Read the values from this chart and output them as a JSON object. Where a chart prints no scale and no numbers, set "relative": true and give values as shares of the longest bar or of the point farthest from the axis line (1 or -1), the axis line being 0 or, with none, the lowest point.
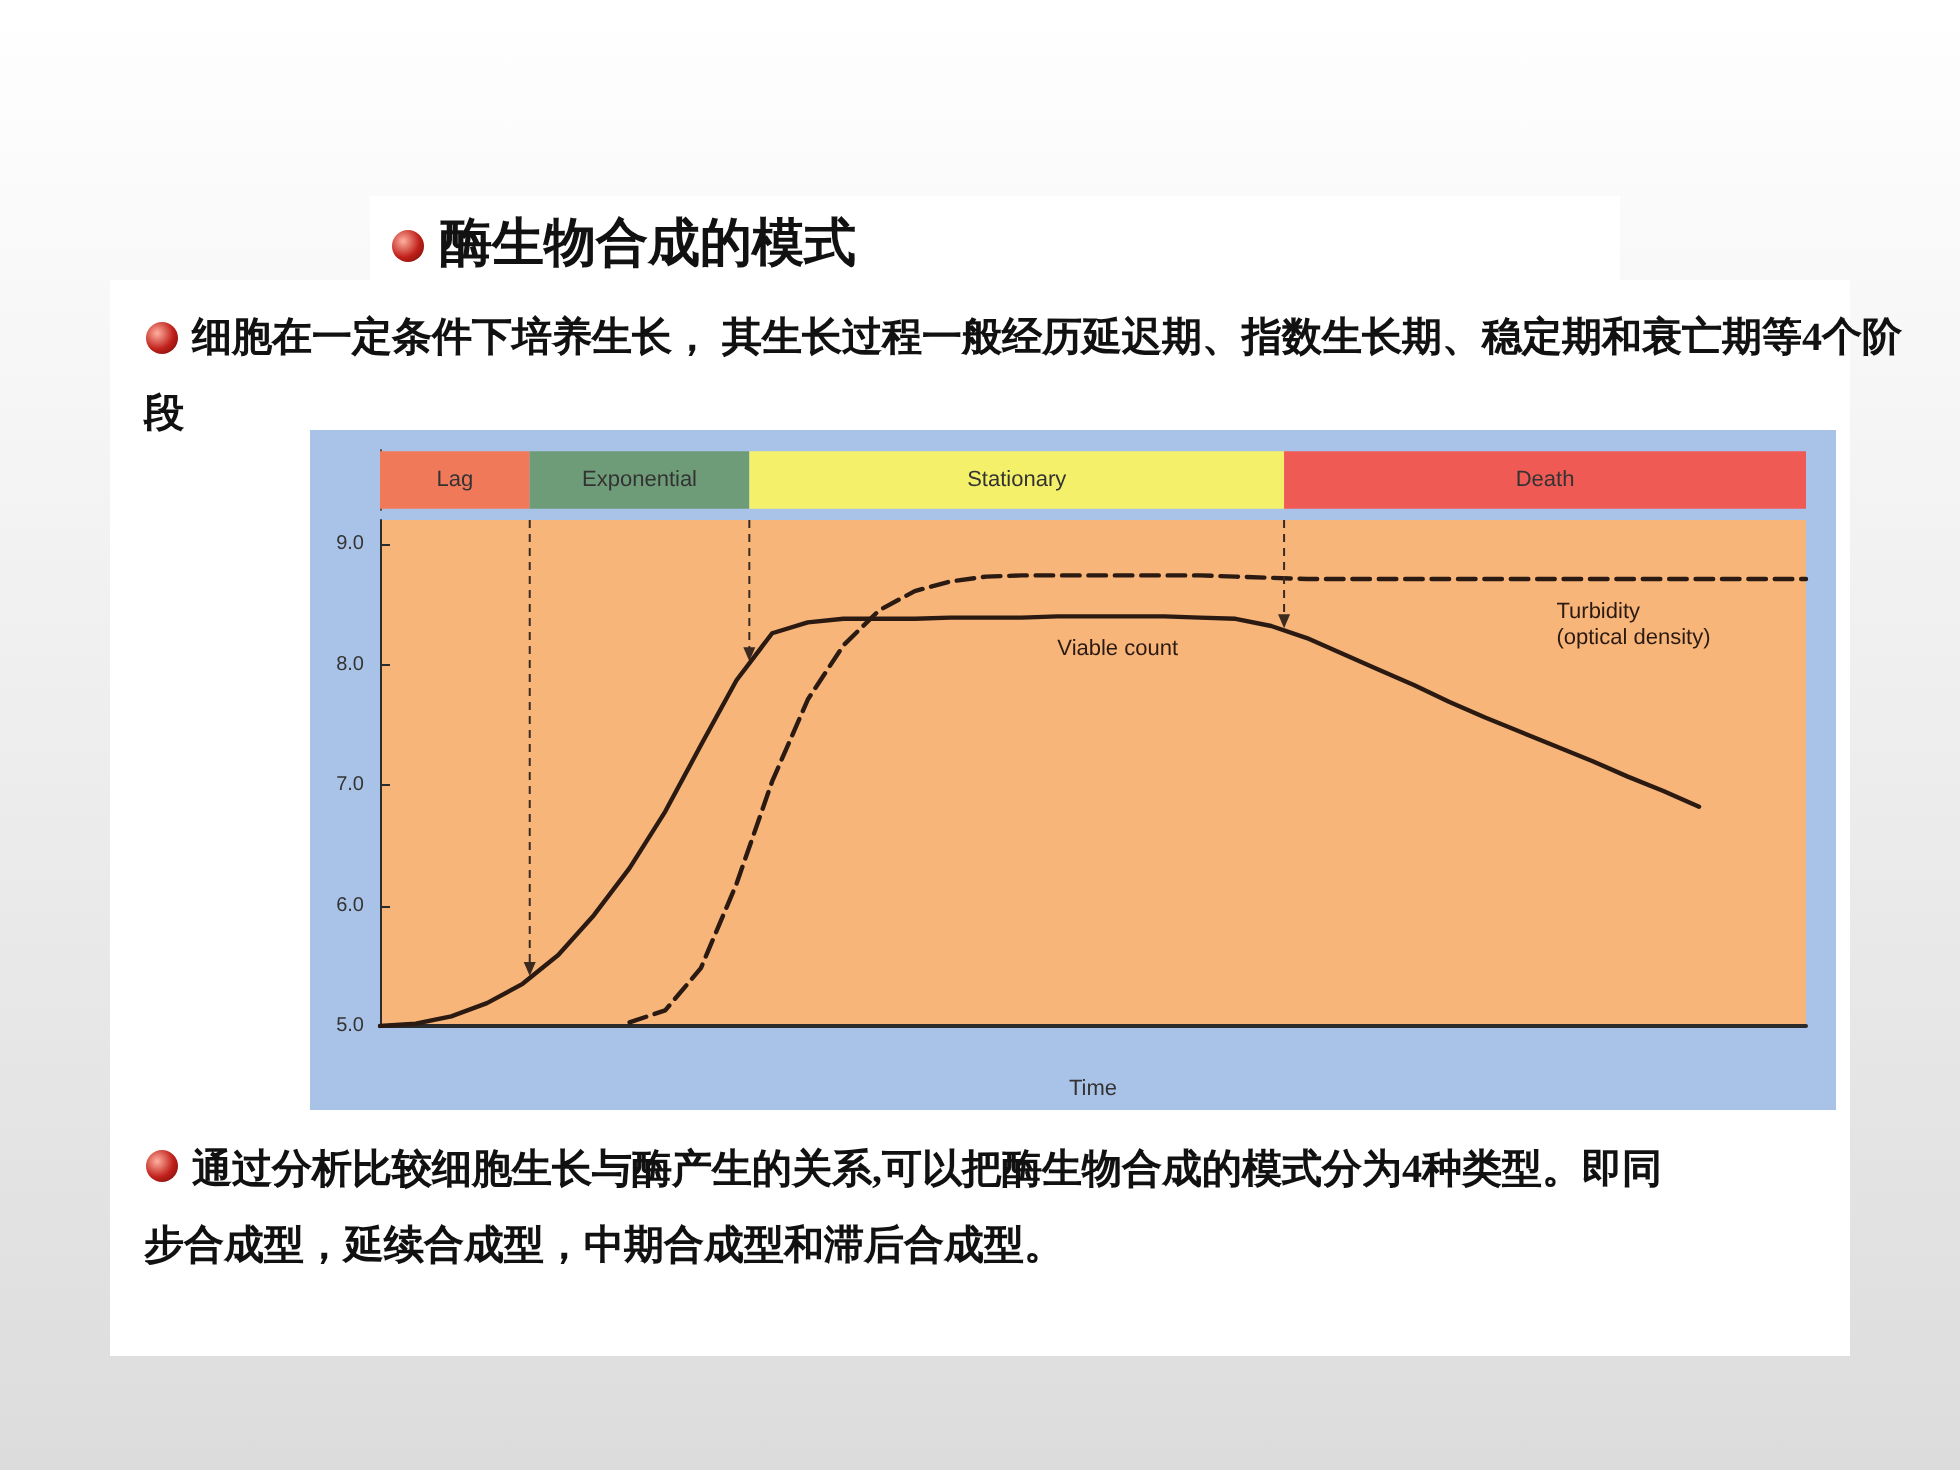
{
  "chart_data": [
    {
      "type": "bar",
      "orientation": "horizontal",
      "stacked": true,
      "relative": true,
      "legend": false,
      "title": "酶生物合成的模式",
      "subtitle": "细胞在一定条件下培养生长， 其生长过程一般经历延迟期、指数生长期、稳定期和衰亡期等4个阶段",
      "categories": [
        null
      ],
      "series": [
        {
          "name": "Lag",
          "color": "#f0795a",
          "values": [
            0.105
          ]
        },
        {
          "name": "Exponential",
          "color": "#6f9c78",
          "values": [
            0.154
          ]
        },
        {
          "name": "Stationary",
          "color": "#f4f06a",
          "values": [
            0.375
          ]
        },
        {
          "name": "Death",
          "color": "#ef5a55",
          "values": [
            0.366
          ]
        }
      ]
    },
    {
      "type": "line",
      "xlabel": "Time",
      "categories": [
        null,
        null,
        null,
        null,
        null,
        null,
        null,
        null,
        null,
        null,
        null,
        null,
        null,
        null,
        null,
        null,
        null,
        null,
        null,
        null,
        null,
        null,
        null,
        null,
        null,
        null,
        null,
        null,
        null,
        null,
        null,
        null,
        null,
        null,
        null,
        null,
        null,
        null,
        null,
        null,
        null
      ],
      "ylim": [
        5,
        9.2
      ],
      "yticks": [
        {
          "value": 5,
          "label": "5.0"
        },
        {
          "value": 6,
          "label": "6.0"
        },
        {
          "value": 7,
          "label": "7.0"
        },
        {
          "value": 8,
          "label": "8.0"
        },
        {
          "value": 9,
          "label": "9.0"
        }
      ],
      "grid": false,
      "legend": false,
      "marker": "none",
      "series": [
        {
          "name": "Viable count",
          "color": "#2b1a12",
          "line_style": "solid",
          "values": [
            5.0,
            5.02,
            5.08,
            5.19,
            5.35,
            5.59,
            5.92,
            6.31,
            6.78,
            7.33,
            7.87,
            8.26,
            8.35,
            8.38,
            8.38,
            8.38,
            8.39,
            8.39,
            8.39,
            8.4,
            8.4,
            8.4,
            8.4,
            8.39,
            8.38,
            8.32,
            8.22,
            8.09,
            7.96,
            7.83,
            7.69,
            7.56,
            7.44,
            7.32,
            7.2,
            7.07,
            6.95,
            6.82,
            null,
            null,
            null
          ]
        },
        {
          "name": "Turbidity\n(optical density)",
          "color": "#2b1a12",
          "line_style": "dashed",
          "values": [
            null,
            null,
            null,
            null,
            null,
            null,
            null,
            5.03,
            5.13,
            5.48,
            6.18,
            7.03,
            7.71,
            8.16,
            8.45,
            8.61,
            8.69,
            8.73,
            8.74,
            8.74,
            8.74,
            8.74,
            8.74,
            8.74,
            8.73,
            8.72,
            8.71,
            8.71,
            8.71,
            8.71,
            8.71,
            8.71,
            8.71,
            8.71,
            8.71,
            8.71,
            8.71,
            8.71,
            8.71,
            8.71,
            8.71
          ]
        }
      ],
      "annotations": [
        "通过分析比较细胞生长与酶产生的关系,可以把酶生物合成的模式分为4种类型。即同步合成型，延续合成型，中期合成型和滞后合成型。"
      ]
    }
  ]
}
